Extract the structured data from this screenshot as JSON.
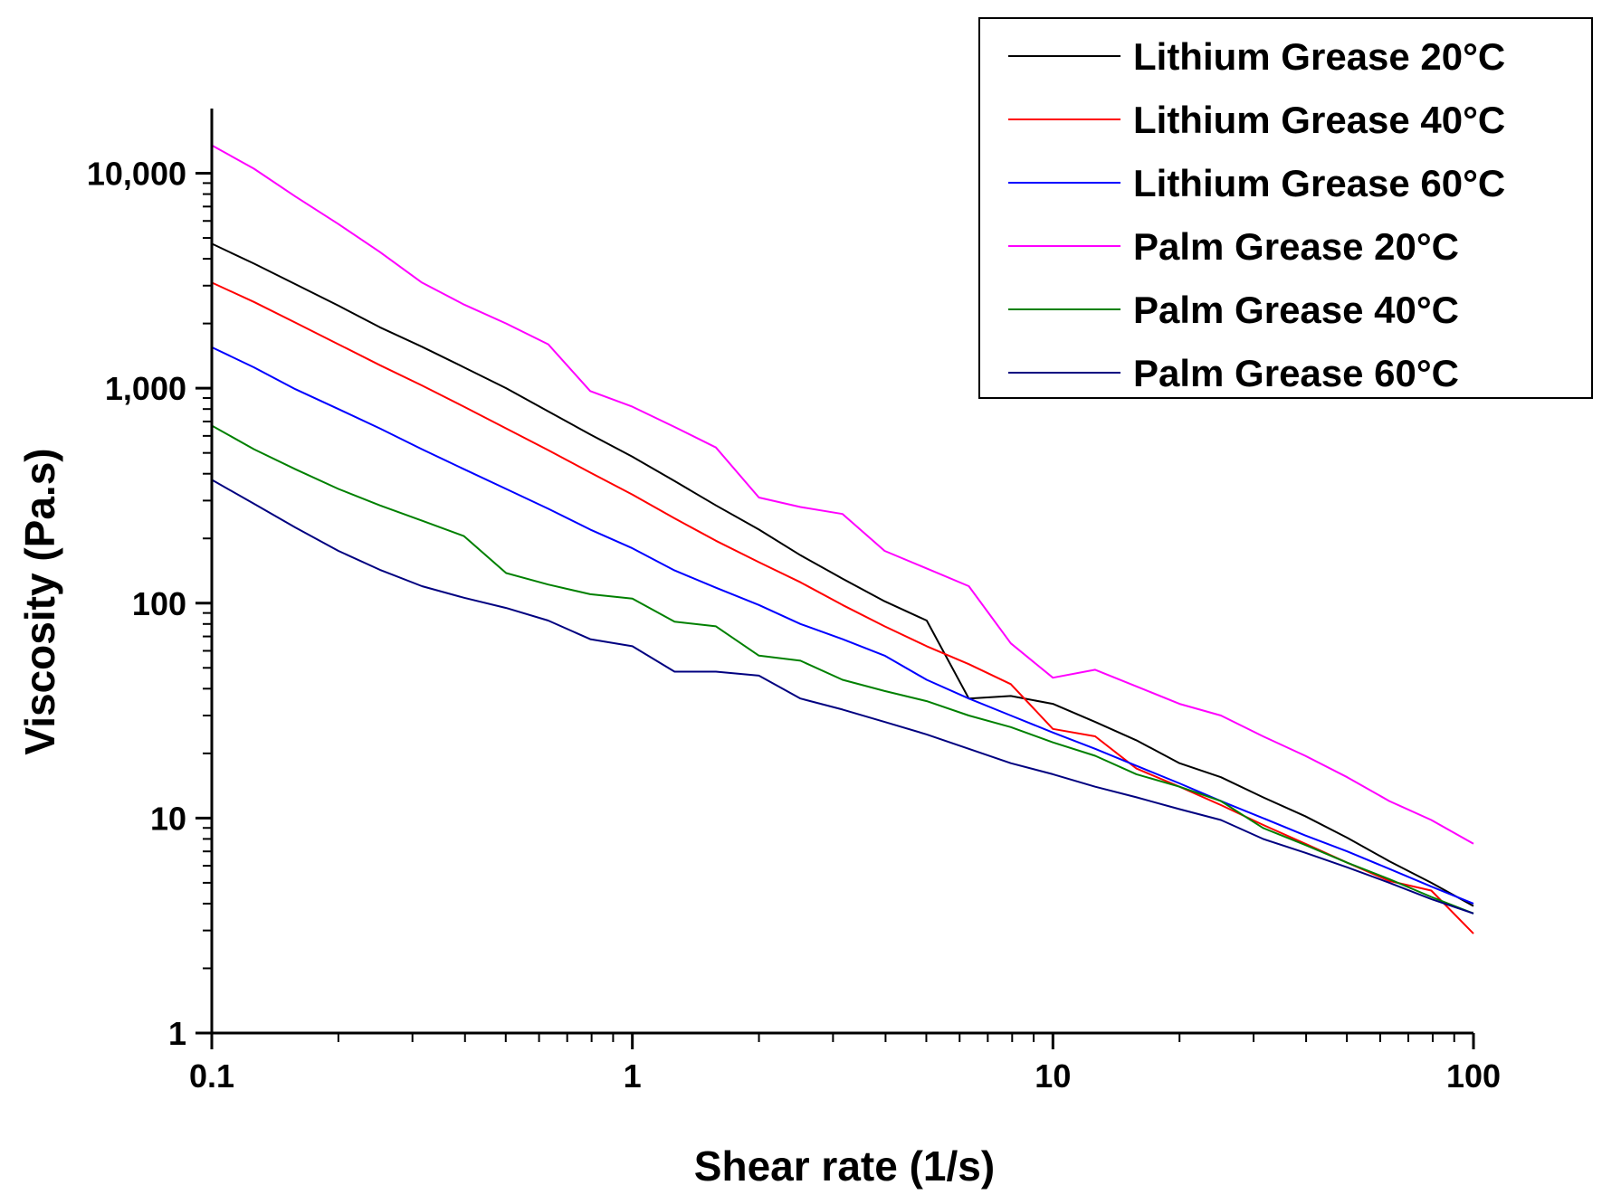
{
  "chart_data": {
    "type": "line",
    "title": "",
    "xlabel": "Shear rate (1/s)",
    "ylabel": "Viscosity (Pa.s)",
    "x_scale": "log",
    "y_scale": "log",
    "xlim": [
      0.1,
      100
    ],
    "ylim": [
      1,
      20000
    ],
    "x_ticks": [
      {
        "value": 0.1,
        "label": "0.1"
      },
      {
        "value": 1,
        "label": "1"
      },
      {
        "value": 10,
        "label": "10"
      },
      {
        "value": 100,
        "label": "100"
      }
    ],
    "y_ticks": [
      {
        "value": 1,
        "label": "1"
      },
      {
        "value": 10,
        "label": "10"
      },
      {
        "value": 100,
        "label": "100"
      },
      {
        "value": 1000,
        "label": "1,000"
      },
      {
        "value": 10000,
        "label": "10,000"
      }
    ],
    "grid": false,
    "legend_position": "top-right",
    "x": [
      0.1,
      0.126,
      0.158,
      0.2,
      0.251,
      0.316,
      0.398,
      0.501,
      0.631,
      0.794,
      1,
      1.26,
      1.58,
      2,
      2.51,
      3.16,
      3.98,
      5.01,
      6.31,
      7.94,
      10,
      12.6,
      15.8,
      20,
      25.1,
      31.6,
      39.8,
      50.1,
      63.1,
      79.4,
      100
    ],
    "series": [
      {
        "name": "Lithium Grease 20°C",
        "color": "#000000",
        "values": [
          4700,
          3800,
          3050,
          2420,
          1920,
          1560,
          1250,
          1000,
          780,
          610,
          480,
          370,
          285,
          220,
          167,
          130,
          102,
          83,
          36,
          37,
          34,
          28,
          23,
          18,
          15.5,
          12.5,
          10.2,
          8.1,
          6.3,
          5.0,
          3.9
        ]
      },
      {
        "name": "Lithium Grease 40°C",
        "color": "#ff0000",
        "values": [
          3100,
          2520,
          2020,
          1600,
          1280,
          1030,
          820,
          650,
          515,
          405,
          320,
          248,
          195,
          155,
          125,
          98,
          78,
          63,
          52,
          42,
          26,
          24,
          17,
          14,
          11.5,
          9.3,
          7.6,
          6.2,
          5.1,
          4.6,
          2.9
        ]
      },
      {
        "name": "Lithium Grease 60°C",
        "color": "#0000ff",
        "values": [
          1550,
          1250,
          990,
          800,
          650,
          520,
          420,
          340,
          275,
          220,
          180,
          142,
          118,
          98,
          80,
          68,
          57,
          44,
          36,
          30,
          25,
          21,
          17.5,
          14.5,
          12,
          10,
          8.3,
          7.0,
          5.8,
          4.8,
          4.0
        ]
      },
      {
        "name": "Palm Grease 20°C",
        "color": "#ff00ff",
        "values": [
          13500,
          10500,
          7800,
          5800,
          4300,
          3100,
          2450,
          2000,
          1600,
          970,
          820,
          660,
          530,
          310,
          280,
          260,
          175,
          145,
          120,
          65,
          45,
          49,
          41,
          34,
          30,
          24,
          19.5,
          15.5,
          12,
          9.8,
          7.6
        ]
      },
      {
        "name": "Palm Grease 40°C",
        "color": "#008000",
        "values": [
          670,
          520,
          420,
          340,
          285,
          242,
          205,
          138,
          122,
          110,
          105,
          82,
          78,
          57,
          54,
          44,
          39,
          35,
          30,
          26.5,
          22.5,
          19.5,
          16,
          14,
          12,
          9.0,
          7.5,
          6.2,
          5.2,
          4.3,
          3.6
        ]
      },
      {
        "name": "Palm Grease 60°C",
        "color": "#000080",
        "values": [
          375,
          290,
          225,
          175,
          143,
          120,
          106,
          95,
          83,
          68,
          63,
          48,
          48,
          46,
          36,
          32,
          28,
          24.5,
          21,
          18,
          16,
          14,
          12.5,
          11,
          9.8,
          8.0,
          6.9,
          5.9,
          5.0,
          4.2,
          3.6
        ]
      }
    ]
  }
}
